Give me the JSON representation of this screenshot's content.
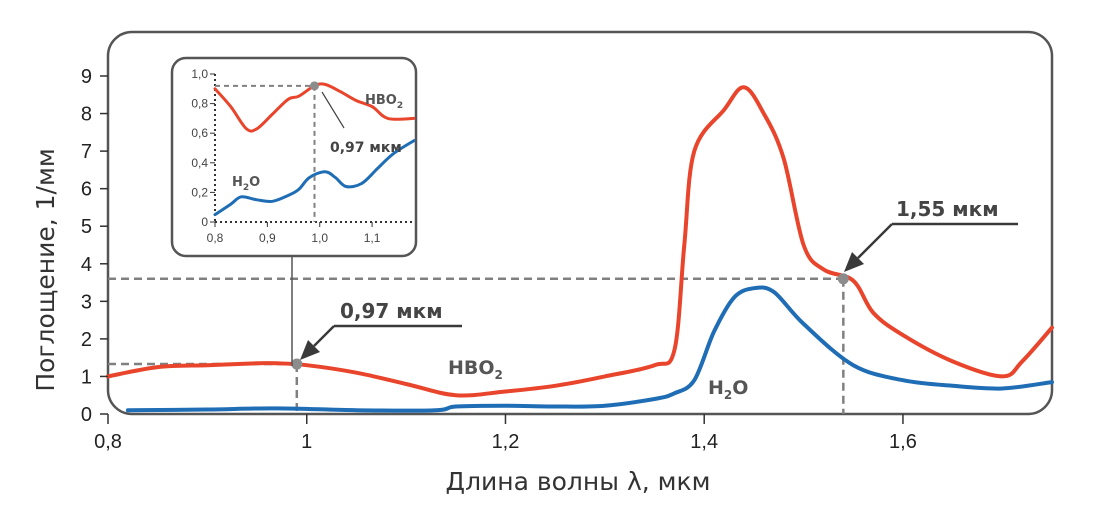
{
  "chart_data": [
    {
      "type": "line",
      "title": "",
      "xlabel": "Длина волны λ, мкм",
      "ylabel": "Поглощение, 1/мм",
      "xlim": [
        0.8,
        1.75
      ],
      "ylim": [
        0,
        9
      ],
      "x_ticks": [
        "0,8",
        "1",
        "1,2",
        "1,4",
        "1,6"
      ],
      "y_ticks": [
        "0",
        "1",
        "2",
        "3",
        "4",
        "5",
        "6",
        "7",
        "8",
        "9"
      ],
      "grid": false,
      "colors": {
        "HBO2": "#e8452c",
        "H2O": "#1f6db5",
        "guide": "#808080"
      },
      "series": [
        {
          "name": "HBO2",
          "x": [
            0.8,
            0.85,
            0.9,
            0.95,
            0.97,
            1.0,
            1.05,
            1.1,
            1.15,
            1.2,
            1.25,
            1.3,
            1.35,
            1.37,
            1.38,
            1.39,
            1.42,
            1.44,
            1.46,
            1.48,
            1.5,
            1.52,
            1.55,
            1.57,
            1.6,
            1.65,
            1.7,
            1.72,
            1.75
          ],
          "y": [
            1.0,
            1.25,
            1.3,
            1.35,
            1.35,
            1.3,
            1.1,
            0.8,
            0.5,
            0.6,
            0.75,
            1.0,
            1.3,
            1.7,
            4.5,
            7.0,
            8.1,
            8.7,
            8.0,
            6.8,
            4.5,
            3.85,
            3.55,
            2.7,
            2.1,
            1.4,
            1.0,
            1.4,
            2.3
          ]
        },
        {
          "name": "H2O",
          "x": [
            0.82,
            0.9,
            0.97,
            1.05,
            1.13,
            1.15,
            1.2,
            1.25,
            1.3,
            1.35,
            1.37,
            1.39,
            1.41,
            1.43,
            1.45,
            1.47,
            1.5,
            1.55,
            1.6,
            1.65,
            1.7,
            1.75
          ],
          "y": [
            0.1,
            0.12,
            0.15,
            0.1,
            0.1,
            0.2,
            0.22,
            0.2,
            0.22,
            0.4,
            0.55,
            0.9,
            2.2,
            3.1,
            3.35,
            3.25,
            2.4,
            1.3,
            0.9,
            0.75,
            0.68,
            0.85
          ]
        }
      ],
      "series_labels": {
        "HBO2_main": "HBO",
        "HBO2_sub": "2",
        "H2O_main": "H",
        "H2O_sub": "2",
        "H2O_tail": "O"
      },
      "annotations": [
        {
          "text": "0,97 мкм",
          "x": 0.99,
          "y": 1.33
        },
        {
          "text": "1,55 мкм",
          "x": 1.54,
          "y": 3.6
        }
      ]
    },
    {
      "type": "line",
      "title": "",
      "xlabel": "",
      "ylabel": "",
      "xlim": [
        0.8,
        1.18
      ],
      "ylim": [
        0,
        1.0
      ],
      "x_ticks": [
        "0,8",
        "0,9",
        "1,0",
        "1,1"
      ],
      "y_ticks": [
        "0",
        "0,2",
        "0,4",
        "0,6",
        "0,8",
        "1,0"
      ],
      "grid": false,
      "series": [
        {
          "name": "HBO2",
          "x": [
            0.8,
            0.83,
            0.86,
            0.88,
            0.91,
            0.94,
            0.96,
            0.99,
            1.01,
            1.04,
            1.07,
            1.1,
            1.13,
            1.18
          ],
          "y": [
            0.9,
            0.78,
            0.63,
            0.63,
            0.73,
            0.83,
            0.85,
            0.92,
            0.93,
            0.88,
            0.82,
            0.78,
            0.7,
            0.7
          ]
        },
        {
          "name": "H2O",
          "x": [
            0.8,
            0.83,
            0.85,
            0.88,
            0.91,
            0.94,
            0.96,
            0.98,
            1.01,
            1.03,
            1.05,
            1.08,
            1.11,
            1.14,
            1.18
          ],
          "y": [
            0.05,
            0.12,
            0.17,
            0.15,
            0.14,
            0.18,
            0.22,
            0.3,
            0.34,
            0.3,
            0.24,
            0.26,
            0.36,
            0.46,
            0.55
          ]
        }
      ],
      "series_labels": {
        "HBO2_main": "HBO",
        "HBO2_sub": "2",
        "H2O_main": "H",
        "H2O_sub": "2",
        "H2O_tail": "O"
      },
      "annotations": [
        {
          "text": "0,97 мкм",
          "x": 0.99,
          "y": 0.92
        }
      ]
    }
  ]
}
